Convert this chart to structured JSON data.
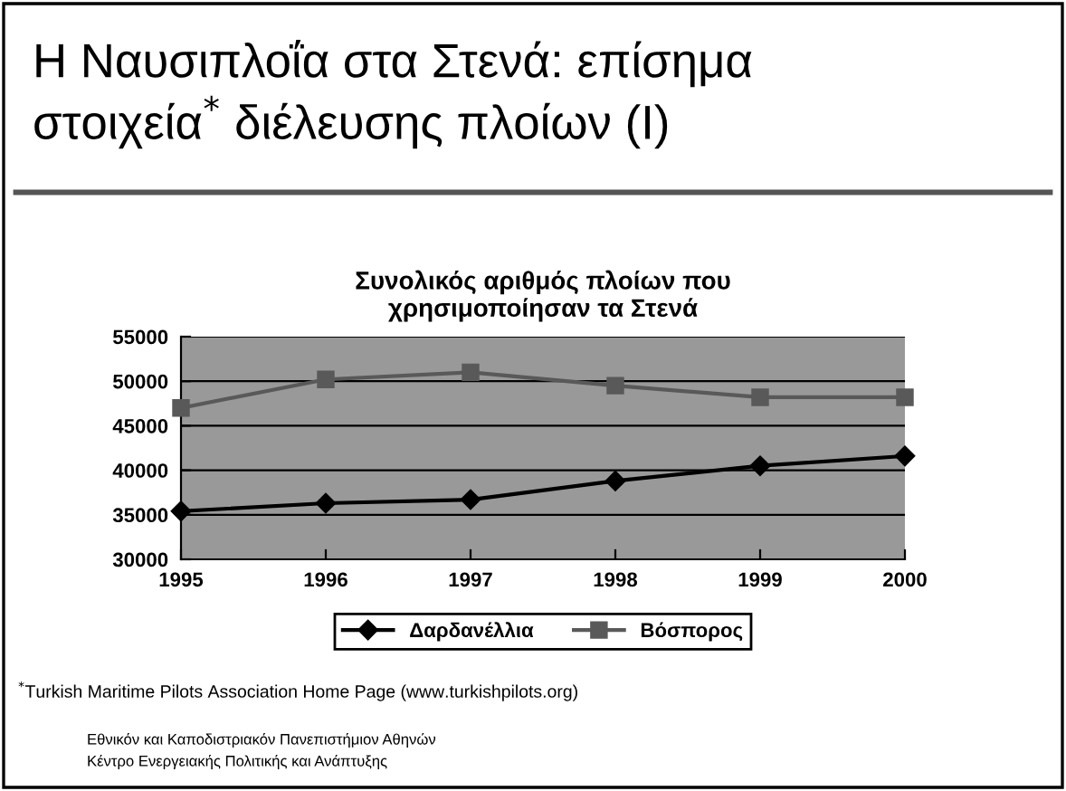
{
  "chart_data": {
    "type": "line",
    "title": "Η Ναυσιπλοΐα στα Στενά: επίσημα\nστοιχεία$^{*}$ διέλευσης πλοίων (Ι)",
    "subtitle": "Συνολικός αριθμός πλοίων που\nχρησιμοποίησαν τα Στενά",
    "x": [
      1995,
      1996,
      1997,
      1998,
      1999,
      2000
    ],
    "series": [
      {
        "name": "Δαρδανέλλια",
        "color": "#000000",
        "marker": "diamond",
        "values": [
          35400,
          36300,
          36700,
          38800,
          40500,
          41600
        ]
      },
      {
        "name": "Βόσπορος",
        "color": "#595959",
        "marker": "square",
        "values": [
          47000,
          50200,
          51000,
          49500,
          48200,
          48200
        ]
      }
    ],
    "xlim": [
      1995,
      2000
    ],
    "xticks": [
      1995,
      1996,
      1997,
      1998,
      1999,
      2000
    ],
    "ylim": [
      30000,
      55000
    ],
    "yticks": [
      30000,
      35000,
      40000,
      45000,
      50000,
      55000
    ],
    "grid": "y",
    "legend": "bottom",
    "annotations": [
      "$^{*}$Turkish Maritime Pilots Association Home Page (www.turkishpilots.org)",
      "Εθνικόν και Καποδιστριακόν Πανεπιστήμιον Αθηνών",
      "Κέντρο Ενεργειακής Πολιτικής και Ανάπτυξης"
    ]
  }
}
